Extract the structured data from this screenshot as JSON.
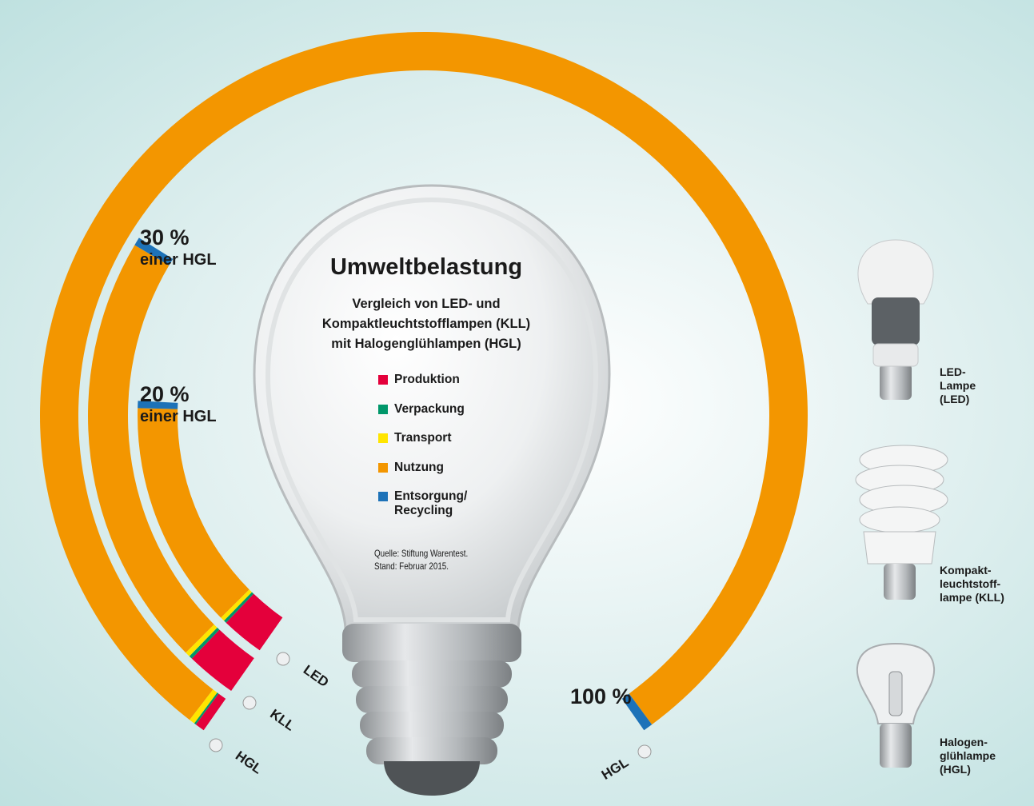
{
  "chart_data": {
    "type": "radial_stacked_bar",
    "title": "Umweltbelastung",
    "subtitle": [
      "Vergleich von LED- und",
      "Kompaktleuchtstofflampen (KLL)",
      "mit Halogenglühlampen (HGL)"
    ],
    "source": "Quelle: Stiftung Warentest. Stand: Februar 2015.",
    "categories": [
      "LED",
      "KLL",
      "HGL"
    ],
    "category_descriptions": [
      "LED- Lampe (LED)",
      "Kompakt- leuchtstoff- lampe (KLL)",
      "Halogen- glühlampe (HGL)"
    ],
    "total_labels": [
      "20 %",
      "30 %",
      "100 %"
    ],
    "total_notes": [
      "einer HGL",
      "einer HGL",
      null
    ],
    "ylim": [
      0,
      100
    ],
    "series": [
      {
        "name": "Produktion",
        "color": "#e4003b",
        "values": [
          3,
          3,
          0.5
        ]
      },
      {
        "name": "Verpackung",
        "color": "#00976a",
        "values": [
          0.2,
          0.2,
          0.1
        ]
      },
      {
        "name": "Transport",
        "color": "#ffe500",
        "values": [
          0.3,
          0.3,
          0.3
        ]
      },
      {
        "name": "Nutzung",
        "color": "#f39600",
        "values": [
          16,
          26,
          98.6
        ]
      },
      {
        "name": "Entsorgung/ Recycling",
        "color": "#1d72b8",
        "values": [
          0.5,
          0.5,
          0.5
        ]
      }
    ]
  }
}
